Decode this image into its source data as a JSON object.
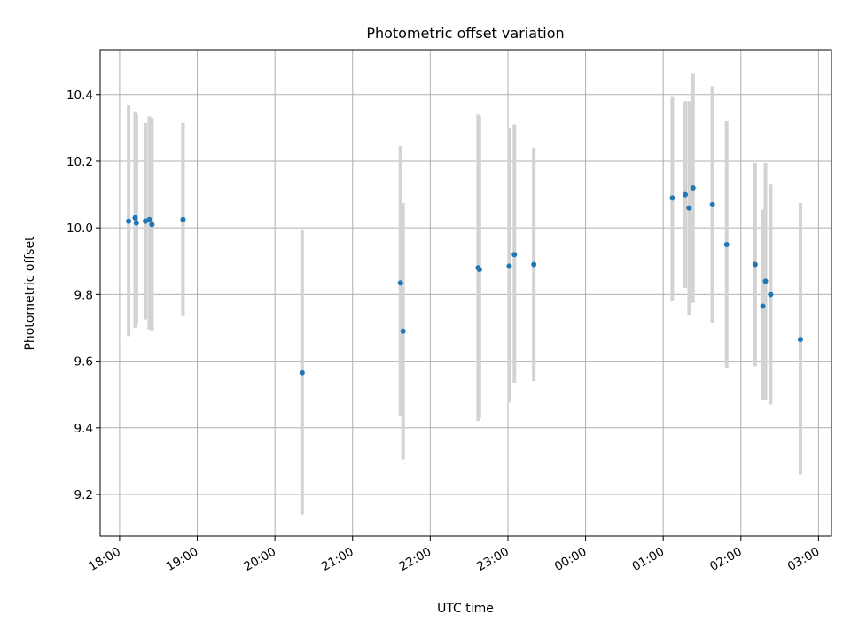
{
  "chart_data": {
    "type": "scatter",
    "title": "Photometric offset variation",
    "xlabel": "UTC time",
    "ylabel": "Photometric offset",
    "xlim": [
      "17:45",
      "03:10"
    ],
    "ylim": [
      9.075,
      10.535
    ],
    "x_ticks": [
      "18:00",
      "19:00",
      "20:00",
      "21:00",
      "22:00",
      "23:00",
      "00:00",
      "01:00",
      "02:00",
      "03:00"
    ],
    "y_ticks": [
      "9.2",
      "9.4",
      "9.6",
      "9.8",
      "10.0",
      "10.2",
      "10.4"
    ],
    "grid": true,
    "colors": {
      "points": "#1f77b4",
      "error_bars": "#d3d3d3",
      "grid": "#b0b0b0"
    },
    "series": [
      {
        "points": [
          {
            "t": "18:07",
            "y": 10.02,
            "lo": 9.675,
            "hi": 10.37
          },
          {
            "t": "18:12",
            "y": 10.03,
            "lo": 9.7,
            "hi": 10.35
          },
          {
            "t": "18:13",
            "y": 10.015,
            "lo": 9.71,
            "hi": 10.34
          },
          {
            "t": "18:20",
            "y": 10.02,
            "lo": 9.725,
            "hi": 10.315
          },
          {
            "t": "18:23",
            "y": 10.025,
            "lo": 9.695,
            "hi": 10.335
          },
          {
            "t": "18:25",
            "y": 10.01,
            "lo": 9.69,
            "hi": 10.33
          },
          {
            "t": "18:49",
            "y": 10.025,
            "lo": 9.735,
            "hi": 10.315
          },
          {
            "t": "20:21",
            "y": 9.565,
            "lo": 9.14,
            "hi": 9.995
          },
          {
            "t": "21:37",
            "y": 9.835,
            "lo": 9.435,
            "hi": 10.245
          },
          {
            "t": "21:39",
            "y": 9.69,
            "lo": 9.305,
            "hi": 10.075
          },
          {
            "t": "22:37",
            "y": 9.88,
            "lo": 9.42,
            "hi": 10.34
          },
          {
            "t": "22:38",
            "y": 9.875,
            "lo": 9.43,
            "hi": 10.335
          },
          {
            "t": "23:01",
            "y": 9.885,
            "lo": 9.475,
            "hi": 10.3
          },
          {
            "t": "23:05",
            "y": 9.92,
            "lo": 9.535,
            "hi": 10.31
          },
          {
            "t": "23:20",
            "y": 9.89,
            "lo": 9.54,
            "hi": 10.24
          },
          {
            "t": "01:07",
            "y": 10.09,
            "lo": 9.78,
            "hi": 10.395
          },
          {
            "t": "01:17",
            "y": 10.1,
            "lo": 9.82,
            "hi": 10.38
          },
          {
            "t": "01:20",
            "y": 10.06,
            "lo": 9.74,
            "hi": 10.38
          },
          {
            "t": "01:23",
            "y": 10.12,
            "lo": 9.775,
            "hi": 10.465
          },
          {
            "t": "01:38",
            "y": 10.07,
            "lo": 9.715,
            "hi": 10.425
          },
          {
            "t": "01:49",
            "y": 9.95,
            "lo": 9.58,
            "hi": 10.32
          },
          {
            "t": "02:11",
            "y": 9.89,
            "lo": 9.585,
            "hi": 10.195
          },
          {
            "t": "02:17",
            "y": 9.765,
            "lo": 9.485,
            "hi": 10.055
          },
          {
            "t": "02:19",
            "y": 9.84,
            "lo": 9.485,
            "hi": 10.195
          },
          {
            "t": "02:23",
            "y": 9.8,
            "lo": 9.47,
            "hi": 10.13
          },
          {
            "t": "02:46",
            "y": 9.665,
            "lo": 9.26,
            "hi": 10.075
          }
        ]
      }
    ]
  }
}
